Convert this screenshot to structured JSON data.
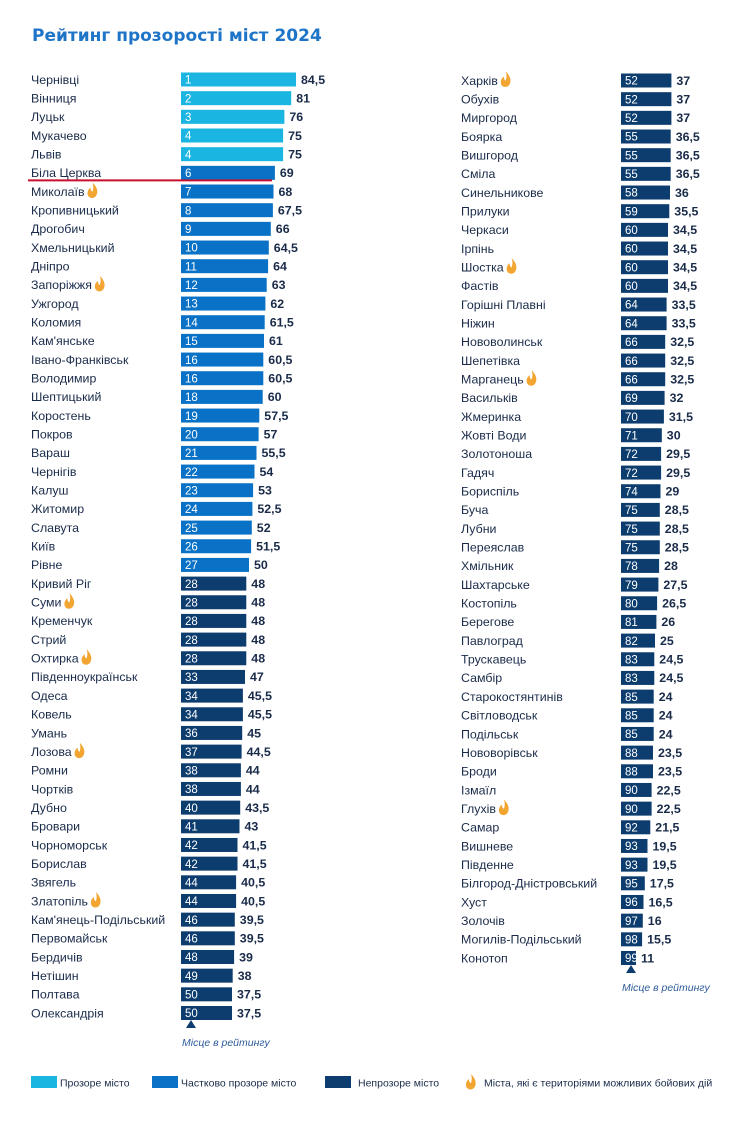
{
  "chart_data": {
    "type": "bar",
    "title": "Рейтинг прозорості міст 2024",
    "rank_note": "Місце в рейтингу",
    "colors": {
      "transparent": "#1bb5e2",
      "partial": "#0a72c6",
      "opaque": "#0d3d6e",
      "fire": "#f2a531",
      "highlight": "#c8102e"
    },
    "legend": [
      {
        "key": "transparent",
        "label": "Прозоре місто"
      },
      {
        "key": "partial",
        "label": "Частково прозоре місто"
      },
      {
        "key": "opaque",
        "label": "Непрозоре місто"
      },
      {
        "key": "fire",
        "label": "Міста, які є територіями можливих бойових дій"
      }
    ],
    "highlight_city": "Біла Церква",
    "columns": [
      [
        {
          "city": "Чернівці",
          "rank": "1",
          "score": "84,5",
          "value": 84.5,
          "cat": "transparent",
          "war": false
        },
        {
          "city": "Вінниця",
          "rank": "2",
          "score": "81",
          "value": 81,
          "cat": "transparent",
          "war": false
        },
        {
          "city": "Луцьк",
          "rank": "3",
          "score": "76",
          "value": 76,
          "cat": "transparent",
          "war": false
        },
        {
          "city": "Мукачево",
          "rank": "4",
          "score": "75",
          "value": 75,
          "cat": "transparent",
          "war": false
        },
        {
          "city": "Львів",
          "rank": "4",
          "score": "75",
          "value": 75,
          "cat": "transparent",
          "war": false
        },
        {
          "city": "Біла Церква",
          "rank": "6",
          "score": "69",
          "value": 69,
          "cat": "partial",
          "war": false
        },
        {
          "city": "Миколаїв",
          "rank": "7",
          "score": "68",
          "value": 68,
          "cat": "partial",
          "war": true
        },
        {
          "city": "Кропивницький",
          "rank": "8",
          "score": "67,5",
          "value": 67.5,
          "cat": "partial",
          "war": false
        },
        {
          "city": "Дрогобич",
          "rank": "9",
          "score": "66",
          "value": 66,
          "cat": "partial",
          "war": false
        },
        {
          "city": "Хмельницький",
          "rank": "10",
          "score": "64,5",
          "value": 64.5,
          "cat": "partial",
          "war": false
        },
        {
          "city": "Дніпро",
          "rank": "11",
          "score": "64",
          "value": 64,
          "cat": "partial",
          "war": false
        },
        {
          "city": "Запоріжжя",
          "rank": "12",
          "score": "63",
          "value": 63,
          "cat": "partial",
          "war": true
        },
        {
          "city": "Ужгород",
          "rank": "13",
          "score": "62",
          "value": 62,
          "cat": "partial",
          "war": false
        },
        {
          "city": "Коломия",
          "rank": "14",
          "score": "61,5",
          "value": 61.5,
          "cat": "partial",
          "war": false
        },
        {
          "city": "Кам'янське",
          "rank": "15",
          "score": "61",
          "value": 61,
          "cat": "partial",
          "war": false
        },
        {
          "city": "Івано-Франківськ",
          "rank": "16",
          "score": "60,5",
          "value": 60.5,
          "cat": "partial",
          "war": false
        },
        {
          "city": "Володимир",
          "rank": "16",
          "score": "60,5",
          "value": 60.5,
          "cat": "partial",
          "war": false
        },
        {
          "city": "Шептицький",
          "rank": "18",
          "score": "60",
          "value": 60,
          "cat": "partial",
          "war": false
        },
        {
          "city": "Коростень",
          "rank": "19",
          "score": "57,5",
          "value": 57.5,
          "cat": "partial",
          "war": false
        },
        {
          "city": "Покров",
          "rank": "20",
          "score": "57",
          "value": 57,
          "cat": "partial",
          "war": false
        },
        {
          "city": "Вараш",
          "rank": "21",
          "score": "55,5",
          "value": 55.5,
          "cat": "partial",
          "war": false
        },
        {
          "city": "Чернігів",
          "rank": "22",
          "score": "54",
          "value": 54,
          "cat": "partial",
          "war": false
        },
        {
          "city": "Калуш",
          "rank": "23",
          "score": "53",
          "value": 53,
          "cat": "partial",
          "war": false
        },
        {
          "city": "Житомир",
          "rank": "24",
          "score": "52,5",
          "value": 52.5,
          "cat": "partial",
          "war": false
        },
        {
          "city": "Славута",
          "rank": "25",
          "score": "52",
          "value": 52,
          "cat": "partial",
          "war": false
        },
        {
          "city": "Київ",
          "rank": "26",
          "score": "51,5",
          "value": 51.5,
          "cat": "partial",
          "war": false
        },
        {
          "city": "Рівне",
          "rank": "27",
          "score": "50",
          "value": 50,
          "cat": "partial",
          "war": false
        },
        {
          "city": "Кривий Ріг",
          "rank": "28",
          "score": "48",
          "value": 48,
          "cat": "opaque",
          "war": false
        },
        {
          "city": "Суми",
          "rank": "28",
          "score": "48",
          "value": 48,
          "cat": "opaque",
          "war": true
        },
        {
          "city": "Кременчук",
          "rank": "28",
          "score": "48",
          "value": 48,
          "cat": "opaque",
          "war": false
        },
        {
          "city": "Стрий",
          "rank": "28",
          "score": "48",
          "value": 48,
          "cat": "opaque",
          "war": false
        },
        {
          "city": "Охтирка",
          "rank": "28",
          "score": "48",
          "value": 48,
          "cat": "opaque",
          "war": true
        },
        {
          "city": "Південноукраїнськ",
          "rank": "33",
          "score": "47",
          "value": 47,
          "cat": "opaque",
          "war": false
        },
        {
          "city": "Одеса",
          "rank": "34",
          "score": "45,5",
          "value": 45.5,
          "cat": "opaque",
          "war": false
        },
        {
          "city": "Ковель",
          "rank": "34",
          "score": "45,5",
          "value": 45.5,
          "cat": "opaque",
          "war": false
        },
        {
          "city": "Умань",
          "rank": "36",
          "score": "45",
          "value": 45,
          "cat": "opaque",
          "war": false
        },
        {
          "city": "Лозова",
          "rank": "37",
          "score": "44,5",
          "value": 44.5,
          "cat": "opaque",
          "war": true
        },
        {
          "city": "Ромни",
          "rank": "38",
          "score": "44",
          "value": 44,
          "cat": "opaque",
          "war": false
        },
        {
          "city": "Чортків",
          "rank": "38",
          "score": "44",
          "value": 44,
          "cat": "opaque",
          "war": false
        },
        {
          "city": "Дубно",
          "rank": "40",
          "score": "43,5",
          "value": 43.5,
          "cat": "opaque",
          "war": false
        },
        {
          "city": "Бровари",
          "rank": "41",
          "score": "43",
          "value": 43,
          "cat": "opaque",
          "war": false
        },
        {
          "city": "Чорноморськ",
          "rank": "42",
          "score": "41,5",
          "value": 41.5,
          "cat": "opaque",
          "war": false
        },
        {
          "city": "Борислав",
          "rank": "42",
          "score": "41,5",
          "value": 41.5,
          "cat": "opaque",
          "war": false
        },
        {
          "city": "Звягель",
          "rank": "44",
          "score": "40,5",
          "value": 40.5,
          "cat": "opaque",
          "war": false
        },
        {
          "city": "Златопіль",
          "rank": "44",
          "score": "40,5",
          "value": 40.5,
          "cat": "opaque",
          "war": true
        },
        {
          "city": "Кам'янець-Подільський",
          "rank": "46",
          "score": "39,5",
          "value": 39.5,
          "cat": "opaque",
          "war": false
        },
        {
          "city": "Первомайськ",
          "rank": "46",
          "score": "39,5",
          "value": 39.5,
          "cat": "opaque",
          "war": false
        },
        {
          "city": "Бердичів",
          "rank": "48",
          "score": "39",
          "value": 39,
          "cat": "opaque",
          "war": false
        },
        {
          "city": "Нетішин",
          "rank": "49",
          "score": "38",
          "value": 38,
          "cat": "opaque",
          "war": false
        },
        {
          "city": "Полтава",
          "rank": "50",
          "score": "37,5",
          "value": 37.5,
          "cat": "opaque",
          "war": false
        },
        {
          "city": "Олександрія",
          "rank": "50",
          "score": "37,5",
          "value": 37.5,
          "cat": "opaque",
          "war": false
        }
      ],
      [
        {
          "city": "Харків",
          "rank": "52",
          "score": "37",
          "value": 37,
          "cat": "opaque",
          "war": true
        },
        {
          "city": "Обухів",
          "rank": "52",
          "score": "37",
          "value": 37,
          "cat": "opaque",
          "war": false
        },
        {
          "city": "Миргород",
          "rank": "52",
          "score": "37",
          "value": 37,
          "cat": "opaque",
          "war": false
        },
        {
          "city": "Боярка",
          "rank": "55",
          "score": "36,5",
          "value": 36.5,
          "cat": "opaque",
          "war": false
        },
        {
          "city": "Вишгород",
          "rank": "55",
          "score": "36,5",
          "value": 36.5,
          "cat": "opaque",
          "war": false
        },
        {
          "city": "Сміла",
          "rank": "55",
          "score": "36,5",
          "value": 36.5,
          "cat": "opaque",
          "war": false
        },
        {
          "city": "Синельникове",
          "rank": "58",
          "score": "36",
          "value": 36,
          "cat": "opaque",
          "war": false
        },
        {
          "city": "Прилуки",
          "rank": "59",
          "score": "35,5",
          "value": 35.5,
          "cat": "opaque",
          "war": false
        },
        {
          "city": "Черкаси",
          "rank": "60",
          "score": "34,5",
          "value": 34.5,
          "cat": "opaque",
          "war": false
        },
        {
          "city": "Ірпінь",
          "rank": "60",
          "score": "34,5",
          "value": 34.5,
          "cat": "opaque",
          "war": false
        },
        {
          "city": "Шостка",
          "rank": "60",
          "score": "34,5",
          "value": 34.5,
          "cat": "opaque",
          "war": true
        },
        {
          "city": "Фастів",
          "rank": "60",
          "score": "34,5",
          "value": 34.5,
          "cat": "opaque",
          "war": false
        },
        {
          "city": "Горішні Плавні",
          "rank": "64",
          "score": "33,5",
          "value": 33.5,
          "cat": "opaque",
          "war": false
        },
        {
          "city": "Ніжин",
          "rank": "64",
          "score": "33,5",
          "value": 33.5,
          "cat": "opaque",
          "war": false
        },
        {
          "city": "Нововолинськ",
          "rank": "66",
          "score": "32,5",
          "value": 32.5,
          "cat": "opaque",
          "war": false
        },
        {
          "city": "Шепетівка",
          "rank": "66",
          "score": "32,5",
          "value": 32.5,
          "cat": "opaque",
          "war": false
        },
        {
          "city": "Марганець",
          "rank": "66",
          "score": "32,5",
          "value": 32.5,
          "cat": "opaque",
          "war": true
        },
        {
          "city": "Васильків",
          "rank": "69",
          "score": "32",
          "value": 32,
          "cat": "opaque",
          "war": false
        },
        {
          "city": "Жмеринка",
          "rank": "70",
          "score": "31,5",
          "value": 31.5,
          "cat": "opaque",
          "war": false
        },
        {
          "city": "Жовті Води",
          "rank": "71",
          "score": "30",
          "value": 30,
          "cat": "opaque",
          "war": false
        },
        {
          "city": "Золотоноша",
          "rank": "72",
          "score": "29,5",
          "value": 29.5,
          "cat": "opaque",
          "war": false
        },
        {
          "city": "Гадяч",
          "rank": "72",
          "score": "29,5",
          "value": 29.5,
          "cat": "opaque",
          "war": false
        },
        {
          "city": "Бориспіль",
          "rank": "74",
          "score": "29",
          "value": 29,
          "cat": "opaque",
          "war": false
        },
        {
          "city": "Буча",
          "rank": "75",
          "score": "28,5",
          "value": 28.5,
          "cat": "opaque",
          "war": false
        },
        {
          "city": "Лубни",
          "rank": "75",
          "score": "28,5",
          "value": 28.5,
          "cat": "opaque",
          "war": false
        },
        {
          "city": "Переяслав",
          "rank": "75",
          "score": "28,5",
          "value": 28.5,
          "cat": "opaque",
          "war": false
        },
        {
          "city": "Хмільник",
          "rank": "78",
          "score": "28",
          "value": 28,
          "cat": "opaque",
          "war": false
        },
        {
          "city": "Шахтарське",
          "rank": "79",
          "score": "27,5",
          "value": 27.5,
          "cat": "opaque",
          "war": false
        },
        {
          "city": "Костопіль",
          "rank": "80",
          "score": "26,5",
          "value": 26.5,
          "cat": "opaque",
          "war": false
        },
        {
          "city": "Берегове",
          "rank": "81",
          "score": "26",
          "value": 26,
          "cat": "opaque",
          "war": false
        },
        {
          "city": "Павлоград",
          "rank": "82",
          "score": "25",
          "value": 25,
          "cat": "opaque",
          "war": false
        },
        {
          "city": "Трускавець",
          "rank": "83",
          "score": "24,5",
          "value": 24.5,
          "cat": "opaque",
          "war": false
        },
        {
          "city": "Самбір",
          "rank": "83",
          "score": "24,5",
          "value": 24.5,
          "cat": "opaque",
          "war": false
        },
        {
          "city": "Старокостянтинів",
          "rank": "85",
          "score": "24",
          "value": 24,
          "cat": "opaque",
          "war": false
        },
        {
          "city": "Світловодськ",
          "rank": "85",
          "score": "24",
          "value": 24,
          "cat": "opaque",
          "war": false
        },
        {
          "city": "Подільськ",
          "rank": "85",
          "score": "24",
          "value": 24,
          "cat": "opaque",
          "war": false
        },
        {
          "city": "Нововорівськ",
          "rank": "88",
          "score": "23,5",
          "value": 23.5,
          "cat": "opaque",
          "war": false
        },
        {
          "city": "Броди",
          "rank": "88",
          "score": "23,5",
          "value": 23.5,
          "cat": "opaque",
          "war": false
        },
        {
          "city": "Ізмаїл",
          "rank": "90",
          "score": "22,5",
          "value": 22.5,
          "cat": "opaque",
          "war": false
        },
        {
          "city": "Глухів",
          "rank": "90",
          "score": "22,5",
          "value": 22.5,
          "cat": "opaque",
          "war": true
        },
        {
          "city": "Самар",
          "rank": "92",
          "score": "21,5",
          "value": 21.5,
          "cat": "opaque",
          "war": false
        },
        {
          "city": "Вишневе",
          "rank": "93",
          "score": "19,5",
          "value": 19.5,
          "cat": "opaque",
          "war": false
        },
        {
          "city": "Південне",
          "rank": "93",
          "score": "19,5",
          "value": 19.5,
          "cat": "opaque",
          "war": false
        },
        {
          "city": "Білгород-Дністровський",
          "rank": "95",
          "score": "17,5",
          "value": 17.5,
          "cat": "opaque",
          "war": false
        },
        {
          "city": "Хуст",
          "rank": "96",
          "score": "16,5",
          "value": 16.5,
          "cat": "opaque",
          "war": false
        },
        {
          "city": "Золочів",
          "rank": "97",
          "score": "16",
          "value": 16,
          "cat": "opaque",
          "war": false
        },
        {
          "city": "Могилів-Подільський",
          "rank": "98",
          "score": "15,5",
          "value": 15.5,
          "cat": "opaque",
          "war": false
        },
        {
          "city": "Конотоп",
          "rank": "99",
          "score": "11",
          "value": 11,
          "cat": "opaque",
          "war": false
        }
      ]
    ]
  }
}
